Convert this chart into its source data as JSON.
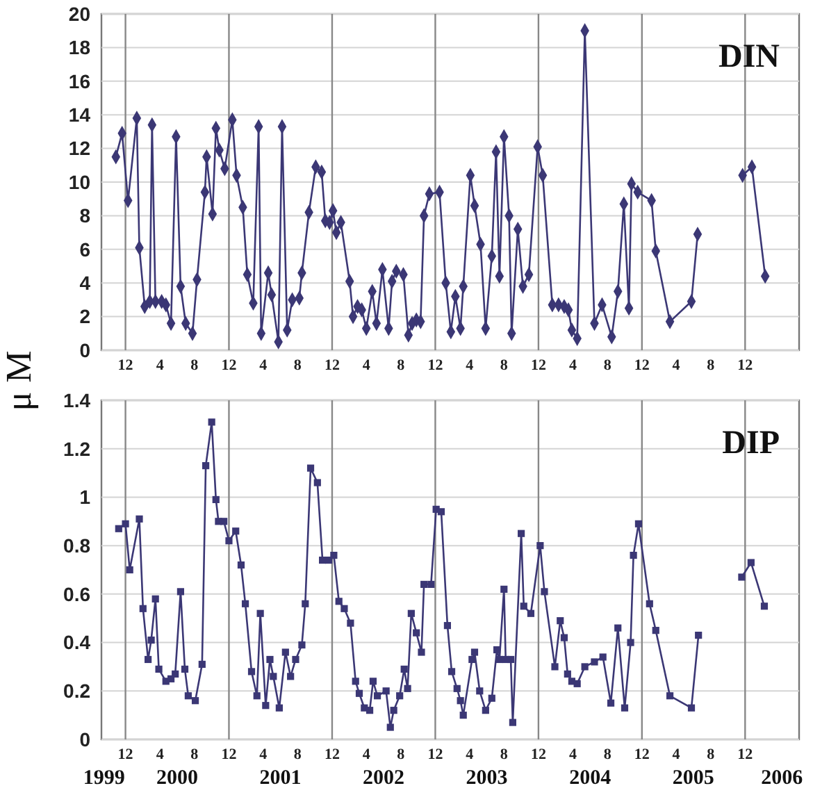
{
  "chart_data": [
    {
      "type": "line",
      "title": "DIN",
      "ylabel": "μ M",
      "marker": "diamond",
      "grid": "y",
      "xlim": [
        "1999-09-07",
        "2006-06-10"
      ],
      "ylim": [
        0,
        20
      ],
      "yticks": [
        0,
        2,
        4,
        6,
        8,
        10,
        12,
        14,
        16,
        18,
        20
      ],
      "xticks": [
        {
          "value": "1999-12",
          "label": "12"
        },
        {
          "value": "2000-04",
          "label": "4"
        },
        {
          "value": "2000-08",
          "label": "8"
        },
        {
          "value": "2000-12",
          "label": "12"
        },
        {
          "value": "2001-04",
          "label": "4"
        },
        {
          "value": "2001-08",
          "label": "8"
        },
        {
          "value": "2001-12",
          "label": "12"
        },
        {
          "value": "2002-04",
          "label": "4"
        },
        {
          "value": "2002-08",
          "label": "8"
        },
        {
          "value": "2002-12",
          "label": "12"
        },
        {
          "value": "2003-04",
          "label": "4"
        },
        {
          "value": "2003-08",
          "label": "8"
        },
        {
          "value": "2003-12",
          "label": "12"
        },
        {
          "value": "2004-04",
          "label": "4"
        },
        {
          "value": "2004-08",
          "label": "8"
        },
        {
          "value": "2004-12",
          "label": "12"
        },
        {
          "value": "2005-04",
          "label": "4"
        },
        {
          "value": "2005-08",
          "label": "8"
        },
        {
          "value": "2005-12",
          "label": "12"
        }
      ],
      "ref_lines": [
        {
          "axis": "x",
          "value": "1999-12",
          "color": "#888888"
        },
        {
          "axis": "x",
          "value": "2000-12",
          "color": "#888888"
        },
        {
          "axis": "x",
          "value": "2001-12",
          "color": "#888888"
        },
        {
          "axis": "x",
          "value": "2002-12",
          "color": "#888888"
        },
        {
          "axis": "x",
          "value": "2003-12",
          "color": "#888888"
        },
        {
          "axis": "x",
          "value": "2004-12",
          "color": "#888888"
        },
        {
          "axis": "x",
          "value": "2005-12",
          "color": "#888888"
        }
      ],
      "x": [
        "1999-10-28",
        "1999-11-19",
        "1999-12-10",
        "2000-01-10",
        "2000-01-19",
        "2000-02-07",
        "2000-02-25",
        "2000-03-04",
        "2000-03-16",
        "2000-04-07",
        "2000-04-22",
        "2000-05-10",
        "2000-05-28",
        "2000-06-13",
        "2000-07-01",
        "2000-07-25",
        "2000-08-10",
        "2000-09-07",
        "2000-09-13",
        "2000-10-04",
        "2000-10-16",
        "2000-10-28",
        "2000-11-16",
        "2000-12-13",
        "2000-12-28",
        "2001-01-19",
        "2001-02-04",
        "2001-02-25",
        "2001-03-16",
        "2001-03-25",
        "2001-04-19",
        "2001-05-01",
        "2001-05-25",
        "2001-06-07",
        "2001-06-25",
        "2001-07-13",
        "2001-08-07",
        "2001-08-16",
        "2001-09-10",
        "2001-10-04",
        "2001-10-25",
        "2001-11-07",
        "2001-11-22",
        "2001-12-04",
        "2001-12-16",
        "2002-01-01",
        "2002-02-01",
        "2002-02-13",
        "2002-03-01",
        "2002-03-16",
        "2002-04-01",
        "2002-04-22",
        "2002-05-07",
        "2002-05-28",
        "2002-06-19",
        "2002-07-01",
        "2002-07-16",
        "2002-08-10",
        "2002-08-28",
        "2002-09-10",
        "2002-09-25",
        "2002-10-10",
        "2002-10-22",
        "2002-11-10",
        "2002-12-16",
        "2003-01-07",
        "2003-01-25",
        "2003-02-10",
        "2003-02-28",
        "2003-03-10",
        "2003-04-04",
        "2003-04-19",
        "2003-05-10",
        "2003-05-28",
        "2003-06-19",
        "2003-07-04",
        "2003-07-16",
        "2003-08-01",
        "2003-08-19",
        "2003-08-28",
        "2003-09-19",
        "2003-10-07",
        "2003-10-28",
        "2003-11-28",
        "2003-12-16",
        "2004-01-19",
        "2004-02-10",
        "2004-03-01",
        "2004-03-16",
        "2004-03-28",
        "2004-04-16",
        "2004-05-13",
        "2004-06-16",
        "2004-07-13",
        "2004-08-16",
        "2004-09-07",
        "2004-09-28",
        "2004-10-16",
        "2004-10-25",
        "2004-11-16",
        "2005-01-04",
        "2005-01-19",
        "2005-03-10",
        "2005-05-25",
        "2005-06-16",
        "2005-09-01",
        "2005-11-22",
        "2005-12-25",
        "2006-02-10"
      ],
      "series": [
        {
          "color": "#3b3775",
          "values": [
            11.5,
            12.9,
            8.9,
            13.8,
            6.1,
            2.6,
            2.9,
            13.4,
            2.9,
            2.9,
            2.7,
            1.6,
            12.7,
            3.8,
            1.6,
            1.0,
            4.2,
            9.4,
            11.5,
            8.1,
            13.2,
            11.9,
            10.8,
            13.7,
            10.4,
            8.5,
            4.5,
            2.8,
            13.3,
            1.0,
            4.6,
            3.3,
            0.5,
            13.3,
            1.2,
            3.0,
            3.1,
            4.6,
            8.2,
            10.9,
            10.6,
            7.7,
            7.6,
            8.3,
            7.0,
            7.6,
            4.1,
            2.0,
            2.6,
            2.4,
            1.3,
            3.5,
            1.6,
            4.8,
            1.3,
            4.1,
            4.7,
            4.5,
            0.9,
            1.6,
            1.8,
            1.7,
            8.0,
            9.3,
            9.4,
            4.0,
            1.1,
            3.2,
            1.3,
            3.8,
            10.4,
            8.6,
            6.3,
            1.3,
            5.6,
            11.8,
            4.4,
            12.7,
            8.0,
            1.0,
            7.2,
            3.8,
            4.5,
            12.1,
            10.4,
            2.7,
            2.7,
            2.6,
            2.4,
            1.2,
            0.7,
            19.0,
            1.6,
            2.7,
            0.8,
            3.5,
            8.7,
            2.5,
            9.9,
            9.4,
            8.9,
            5.9,
            1.7,
            2.9,
            6.9,
            null,
            10.4,
            10.9,
            4.4
          ]
        }
      ]
    },
    {
      "type": "line",
      "title": "DIP",
      "marker": "square",
      "grid": "y",
      "xlim": [
        "1999-09-07",
        "2006-06-10"
      ],
      "ylim": [
        0,
        1.4
      ],
      "yticks": [
        0,
        0.2,
        0.4,
        0.6,
        0.8,
        1,
        1.2,
        1.4
      ],
      "xticks": [
        {
          "value": "1999-12",
          "label": "12"
        },
        {
          "value": "2000-04",
          "label": "4"
        },
        {
          "value": "2000-08",
          "label": "8"
        },
        {
          "value": "2000-12",
          "label": "12"
        },
        {
          "value": "2001-04",
          "label": "4"
        },
        {
          "value": "2001-08",
          "label": "8"
        },
        {
          "value": "2001-12",
          "label": "12"
        },
        {
          "value": "2002-04",
          "label": "4"
        },
        {
          "value": "2002-08",
          "label": "8"
        },
        {
          "value": "2002-12",
          "label": "12"
        },
        {
          "value": "2003-04",
          "label": "4"
        },
        {
          "value": "2003-08",
          "label": "8"
        },
        {
          "value": "2003-12",
          "label": "12"
        },
        {
          "value": "2004-04",
          "label": "4"
        },
        {
          "value": "2004-08",
          "label": "8"
        },
        {
          "value": "2004-12",
          "label": "12"
        },
        {
          "value": "2005-04",
          "label": "4"
        },
        {
          "value": "2005-08",
          "label": "8"
        },
        {
          "value": "2005-12",
          "label": "12"
        }
      ],
      "x2lim": [
        "1999-09-07",
        "2006-06-10"
      ],
      "x2ticks": [
        {
          "value": "1999-09-16",
          "label": "1999"
        },
        {
          "value": "2000-06",
          "label": "2000"
        },
        {
          "value": "2001-06",
          "label": "2001"
        },
        {
          "value": "2002-06",
          "label": "2002"
        },
        {
          "value": "2003-06",
          "label": "2003"
        },
        {
          "value": "2004-06",
          "label": "2004"
        },
        {
          "value": "2005-06",
          "label": "2005"
        },
        {
          "value": "2006-04-10",
          "label": "2006"
        }
      ],
      "ref_lines": [
        {
          "axis": "x",
          "value": "1999-12",
          "color": "#888888"
        },
        {
          "axis": "x",
          "value": "2000-12",
          "color": "#888888"
        },
        {
          "axis": "x",
          "value": "2001-12",
          "color": "#888888"
        },
        {
          "axis": "x",
          "value": "2002-12",
          "color": "#888888"
        },
        {
          "axis": "x",
          "value": "2003-12",
          "color": "#888888"
        },
        {
          "axis": "x",
          "value": "2004-12",
          "color": "#888888"
        },
        {
          "axis": "x",
          "value": "2005-12",
          "color": "#888888"
        }
      ],
      "x": [
        "1999-11-07",
        "1999-12-01",
        "1999-12-16",
        "2000-01-19",
        "2000-02-01",
        "2000-02-19",
        "2000-03-01",
        "2000-03-16",
        "2000-03-28",
        "2000-04-22",
        "2000-05-10",
        "2000-05-25",
        "2000-06-13",
        "2000-06-28",
        "2000-07-10",
        "2000-08-04",
        "2000-08-28",
        "2000-09-10",
        "2000-10-01",
        "2000-10-16",
        "2000-10-25",
        "2000-11-13",
        "2000-12-01",
        "2000-12-25",
        "2001-01-13",
        "2001-01-28",
        "2001-02-19",
        "2001-03-10",
        "2001-03-22",
        "2001-04-10",
        "2001-04-25",
        "2001-05-07",
        "2001-05-28",
        "2001-06-19",
        "2001-07-07",
        "2001-07-25",
        "2001-08-16",
        "2001-08-28",
        "2001-09-16",
        "2001-10-10",
        "2001-10-28",
        "2001-11-19",
        "2001-12-07",
        "2001-12-25",
        "2002-01-13",
        "2002-02-04",
        "2002-02-22",
        "2002-03-07",
        "2002-03-25",
        "2002-04-13",
        "2002-04-25",
        "2002-05-10",
        "2002-06-10",
        "2002-06-25",
        "2002-07-07",
        "2002-07-28",
        "2002-08-13",
        "2002-08-25",
        "2002-09-07",
        "2002-09-25",
        "2002-10-13",
        "2002-10-22",
        "2002-11-16",
        "2002-12-04",
        "2002-12-22",
        "2003-01-13",
        "2003-01-28",
        "2003-02-16",
        "2003-02-28",
        "2003-03-10",
        "2003-04-10",
        "2003-04-19",
        "2003-05-07",
        "2003-05-28",
        "2003-06-19",
        "2003-07-07",
        "2003-07-16",
        "2003-08-01",
        "2003-08-07",
        "2003-08-25",
        "2003-09-01",
        "2003-10-01",
        "2003-10-10",
        "2003-11-04",
        "2003-12-07",
        "2003-12-22",
        "2004-01-28",
        "2004-02-16",
        "2004-03-01",
        "2004-03-13",
        "2004-03-28",
        "2004-04-16",
        "2004-05-13",
        "2004-06-16",
        "2004-07-16",
        "2004-08-13",
        "2004-09-07",
        "2004-10-01",
        "2004-10-22",
        "2004-11-01",
        "2004-11-19",
        "2004-12-28",
        "2005-01-19",
        "2005-03-10",
        "2005-05-25",
        "2005-06-19",
        "2005-09-01",
        "2005-11-19",
        "2005-12-22",
        "2006-02-07"
      ],
      "series": [
        {
          "color": "#3b3775",
          "values": [
            0.87,
            0.89,
            0.7,
            0.91,
            0.54,
            0.33,
            0.41,
            0.58,
            0.29,
            0.24,
            0.25,
            0.27,
            0.61,
            0.29,
            0.18,
            0.16,
            0.31,
            1.13,
            1.31,
            0.99,
            0.9,
            0.9,
            0.82,
            0.86,
            0.72,
            0.56,
            0.28,
            0.18,
            0.52,
            0.14,
            0.33,
            0.26,
            0.13,
            0.36,
            0.26,
            0.33,
            0.39,
            0.56,
            1.12,
            1.06,
            0.74,
            0.74,
            0.76,
            0.57,
            0.54,
            0.48,
            0.24,
            0.19,
            0.13,
            0.12,
            0.24,
            0.18,
            0.2,
            0.05,
            0.12,
            0.18,
            0.29,
            0.21,
            0.52,
            0.44,
            0.36,
            0.64,
            0.64,
            0.95,
            0.94,
            0.47,
            0.28,
            0.21,
            0.16,
            0.1,
            0.33,
            0.36,
            0.2,
            0.12,
            0.17,
            0.37,
            0.33,
            0.62,
            0.33,
            0.33,
            0.07,
            0.85,
            0.55,
            0.52,
            0.8,
            0.61,
            0.3,
            0.49,
            0.42,
            0.27,
            0.24,
            0.23,
            0.3,
            0.32,
            0.34,
            0.15,
            0.46,
            0.13,
            0.4,
            0.76,
            0.89,
            0.56,
            0.45,
            0.18,
            0.13,
            0.43,
            null,
            0.67,
            0.73,
            0.55
          ]
        }
      ]
    }
  ]
}
